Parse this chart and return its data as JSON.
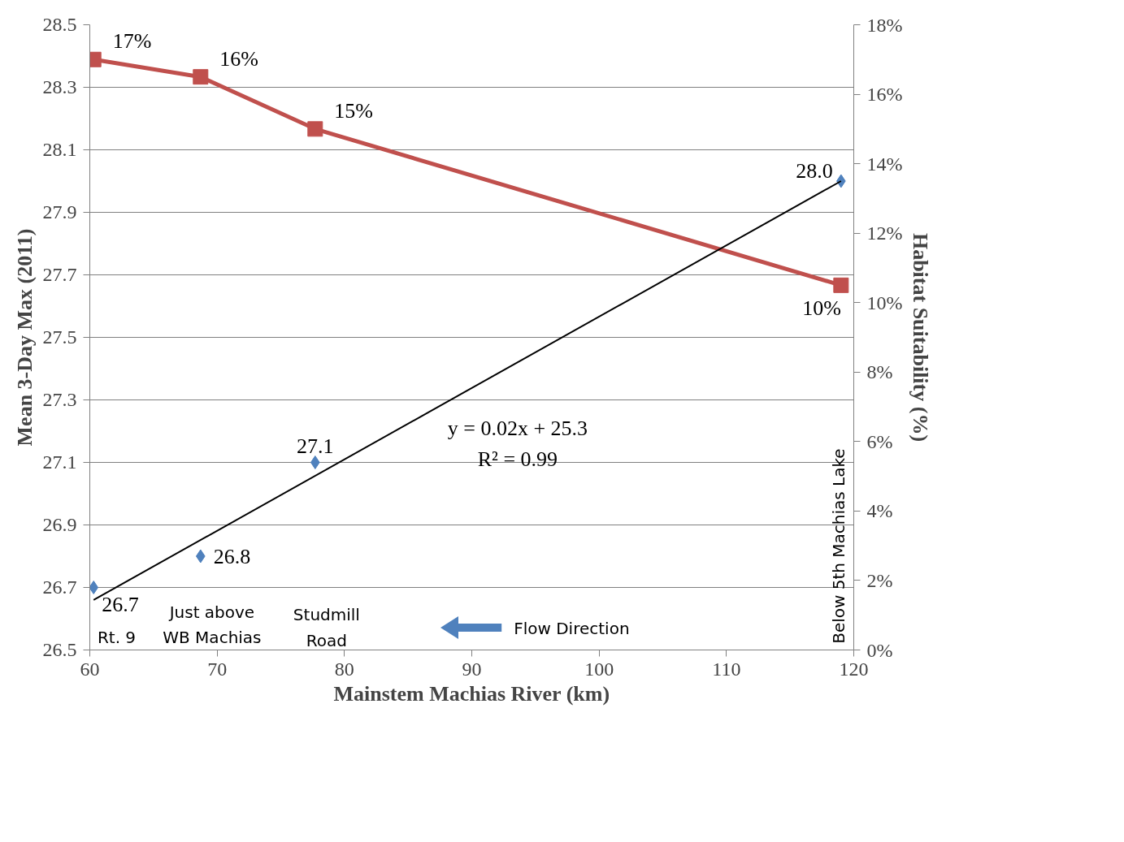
{
  "chart_data": {
    "type": "scatter",
    "xlabel": "Mainstem Machias River (km)",
    "ylabel": "Mean 3-Day Max (2011)",
    "y2label": "Habitat Suitability (%)",
    "xlim": [
      60,
      120
    ],
    "xticks": [
      60,
      70,
      80,
      90,
      100,
      110,
      120
    ],
    "ylim": [
      26.5,
      28.5
    ],
    "yticks": [
      26.5,
      26.7,
      26.9,
      27.1,
      27.3,
      27.5,
      27.7,
      27.9,
      28.1,
      28.3,
      28.5
    ],
    "y2lim": [
      0,
      18
    ],
    "y2ticks": [
      {
        "value": 0,
        "label": "0%"
      },
      {
        "value": 2,
        "label": "2%"
      },
      {
        "value": 4,
        "label": "4%"
      },
      {
        "value": 6,
        "label": "6%"
      },
      {
        "value": 8,
        "label": "8%"
      },
      {
        "value": 10,
        "label": "10%"
      },
      {
        "value": 12,
        "label": "12%"
      },
      {
        "value": 14,
        "label": "14%"
      },
      {
        "value": 16,
        "label": "16%"
      },
      {
        "value": 18,
        "label": "18%"
      }
    ],
    "grid": "y",
    "series": [
      {
        "color": "#4f81bd",
        "marker": "diamond",
        "x": [
          60.3,
          68.7,
          77.7,
          119
        ],
        "values": [
          26.7,
          26.8,
          27.1,
          28.0
        ],
        "value_labels": [
          "26.7",
          "26.8",
          "27.1",
          "28.0"
        ]
      },
      {
        "type": "line",
        "axis": "y2",
        "color": "#c0504d",
        "marker": "square",
        "x": [
          60.3,
          68.7,
          77.7,
          119
        ],
        "values": [
          17,
          16.5,
          15,
          10.5
        ],
        "value_labels": [
          "17%",
          "16%",
          "15%",
          "10%"
        ]
      },
      {
        "type": "line",
        "color": "#000000",
        "marker": "none",
        "x": [
          60.3,
          119
        ],
        "values": [
          26.66,
          28.0
        ]
      }
    ],
    "annotations": [
      "y = 0.02x + 25.3",
      "R² = 0.99",
      "Rt. 9",
      "Just above",
      "WB Machias",
      "Studmill",
      "Road",
      "Flow Direction",
      "Below 5th Machias Lake"
    ]
  }
}
